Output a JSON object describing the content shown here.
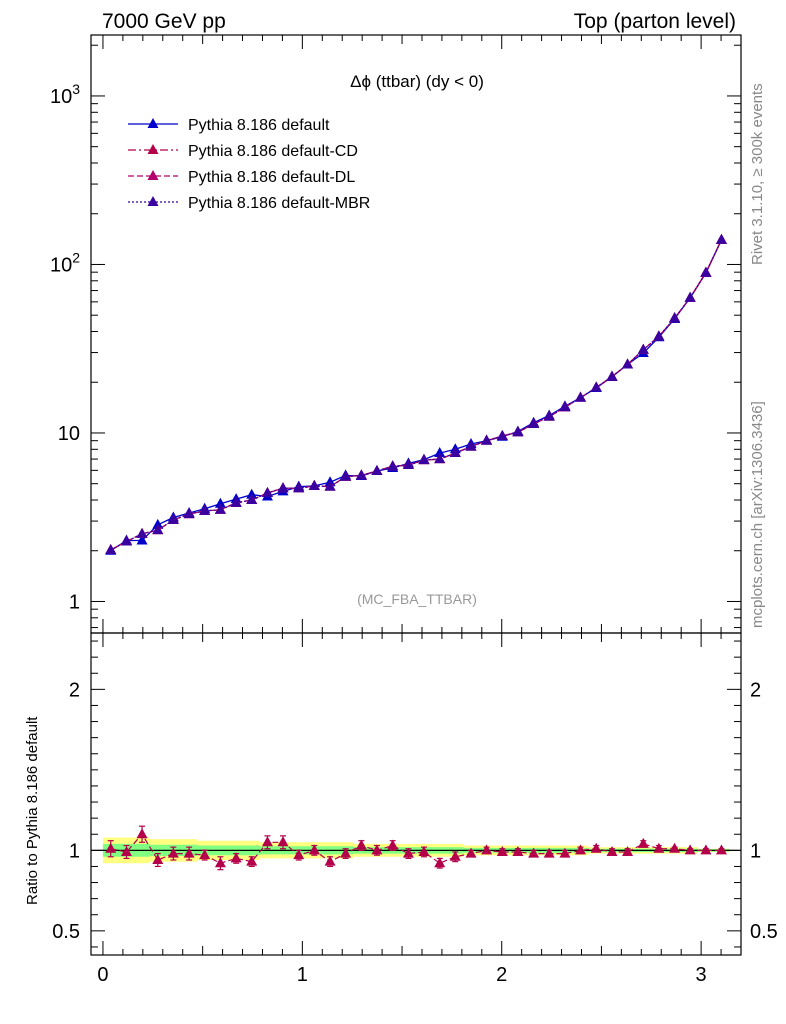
{
  "header": {
    "left": "7000 GeV pp",
    "right": "Top (parton level)"
  },
  "side": {
    "rivet": "Rivet 3.1.10, ≥ 300k events",
    "mcplots": "mcplots.cern.ch [arXiv:1306.3436]"
  },
  "main_plot": {
    "title": "Δϕ (ttbar) (dy < 0)",
    "watermark": "(MC_FBA_TTBAR)",
    "legend": [
      {
        "label": "Pythia 8.186 default",
        "color": "#0000cc",
        "dash": "solid"
      },
      {
        "label": "Pythia 8.186 default-CD",
        "color": "#b4004a",
        "dash": "dashdot"
      },
      {
        "label": "Pythia 8.186 default-DL",
        "color": "#b4006a",
        "dash": "dashed"
      },
      {
        "label": "Pythia 8.186 default-MBR",
        "color": "#3a00a0",
        "dash": "dotted"
      }
    ]
  },
  "ratio_plot": {
    "ylabel": "Ratio to Pythia 8.186 default",
    "band_inner_color": "#80ff80",
    "band_outer_color": "#ffff80"
  },
  "chart_data": [
    {
      "type": "line",
      "panel": "main",
      "yscale": "log",
      "ylim": [
        0.65,
        2300
      ],
      "xlim": [
        -0.06,
        3.2
      ],
      "x_ticks": [
        "0",
        "1",
        "2",
        "3"
      ],
      "y_ticks": [
        "1",
        "10",
        "10^2",
        "10^3"
      ],
      "x": [
        0.039,
        0.118,
        0.196,
        0.275,
        0.353,
        0.432,
        0.51,
        0.589,
        0.668,
        0.746,
        0.825,
        0.903,
        0.982,
        1.06,
        1.139,
        1.217,
        1.296,
        1.374,
        1.453,
        1.532,
        1.61,
        1.689,
        1.767,
        1.846,
        1.924,
        2.003,
        2.081,
        2.16,
        2.238,
        2.317,
        2.395,
        2.474,
        2.553,
        2.631,
        2.71,
        2.788,
        2.867,
        2.945,
        3.024,
        3.102
      ],
      "series": [
        {
          "name": "Pythia 8.186 default",
          "values": [
            2.0,
            2.3,
            2.3,
            2.85,
            3.15,
            3.35,
            3.55,
            3.8,
            4.05,
            4.3,
            4.2,
            4.5,
            4.8,
            4.85,
            5.1,
            5.6,
            5.55,
            5.95,
            6.2,
            6.6,
            6.95,
            7.6,
            8.0,
            8.6,
            9.0,
            9.5,
            10.2,
            11.5,
            12.7,
            14.4,
            16.2,
            18.5,
            21.5,
            25.5,
            29.8,
            37.0,
            47.5,
            63.5,
            89.0,
            140.0
          ]
        },
        {
          "name": "Pythia 8.186 default-CD",
          "values": [
            2.02,
            2.27,
            2.52,
            2.65,
            3.05,
            3.3,
            3.45,
            3.5,
            3.85,
            4.0,
            4.4,
            4.7,
            4.7,
            4.85,
            4.8,
            5.5,
            5.6,
            5.95,
            6.35,
            6.45,
            6.9,
            7.0,
            7.6,
            8.3,
            9.0,
            9.6,
            10.1,
            11.3,
            12.5,
            14.2,
            16.2,
            18.6,
            21.6,
            25.5,
            31.2,
            37.4,
            48.0,
            63.5,
            89.5,
            140.0
          ]
        },
        {
          "name": "Pythia 8.186 default-DL",
          "values": [
            2.02,
            2.27,
            2.52,
            2.65,
            3.05,
            3.3,
            3.45,
            3.5,
            3.85,
            4.0,
            4.4,
            4.7,
            4.7,
            4.85,
            4.8,
            5.5,
            5.6,
            5.95,
            6.35,
            6.45,
            6.9,
            7.0,
            7.6,
            8.3,
            9.0,
            9.6,
            10.1,
            11.3,
            12.5,
            14.2,
            16.2,
            18.6,
            21.6,
            25.5,
            31.2,
            37.4,
            48.0,
            63.5,
            89.5,
            140.0
          ]
        },
        {
          "name": "Pythia 8.186 default-MBR",
          "values": [
            2.02,
            2.27,
            2.52,
            2.65,
            3.05,
            3.3,
            3.45,
            3.5,
            3.85,
            4.0,
            4.4,
            4.7,
            4.7,
            4.85,
            4.8,
            5.5,
            5.6,
            5.95,
            6.35,
            6.45,
            6.9,
            7.0,
            7.6,
            8.3,
            9.0,
            9.6,
            10.1,
            11.3,
            12.5,
            14.2,
            16.2,
            18.6,
            21.6,
            25.5,
            31.2,
            37.4,
            48.0,
            63.5,
            89.5,
            140.0
          ]
        }
      ]
    },
    {
      "type": "line",
      "panel": "ratio",
      "ylabel": "Ratio to Pythia 8.186 default",
      "ylim": [
        0.35,
        2.35
      ],
      "y_ticks": [
        "0.5",
        "1",
        "2"
      ],
      "x_ticks": [
        "0",
        "1",
        "2",
        "3"
      ],
      "x": [
        0.039,
        0.118,
        0.196,
        0.275,
        0.353,
        0.432,
        0.51,
        0.589,
        0.668,
        0.746,
        0.825,
        0.903,
        0.982,
        1.06,
        1.139,
        1.217,
        1.296,
        1.374,
        1.453,
        1.532,
        1.61,
        1.689,
        1.767,
        1.846,
        1.924,
        2.003,
        2.081,
        2.16,
        2.238,
        2.317,
        2.395,
        2.474,
        2.553,
        2.631,
        2.71,
        2.788,
        2.867,
        2.945,
        3.024,
        3.102
      ],
      "ratio_values": [
        1.01,
        0.99,
        1.1,
        0.94,
        0.98,
        0.98,
        0.97,
        0.92,
        0.95,
        0.93,
        1.05,
        1.05,
        0.97,
        1.0,
        0.93,
        0.98,
        1.03,
        1.0,
        1.03,
        0.98,
        0.99,
        0.92,
        0.96,
        0.98,
        1.0,
        0.99,
        0.99,
        0.98,
        0.98,
        0.98,
        1.0,
        1.01,
        0.99,
        0.99,
        1.04,
        1.01,
        1.01,
        1.0,
        1.0,
        1.0
      ],
      "ratio_errors": [
        0.05,
        0.04,
        0.05,
        0.04,
        0.04,
        0.04,
        0.03,
        0.04,
        0.03,
        0.03,
        0.04,
        0.04,
        0.03,
        0.03,
        0.03,
        0.03,
        0.03,
        0.03,
        0.03,
        0.03,
        0.03,
        0.03,
        0.03,
        0.02,
        0.02,
        0.02,
        0.02,
        0.02,
        0.02,
        0.02,
        0.02,
        0.02,
        0.02,
        0.02,
        0.02,
        0.02,
        0.01,
        0.01,
        0.01,
        0.01
      ],
      "band_outer": [
        0.08,
        0.08,
        0.08,
        0.07,
        0.07,
        0.07,
        0.06,
        0.06,
        0.06,
        0.06,
        0.05,
        0.05,
        0.05,
        0.05,
        0.05,
        0.05,
        0.04,
        0.04,
        0.04,
        0.04,
        0.04,
        0.04,
        0.04,
        0.03,
        0.03,
        0.03,
        0.03,
        0.03,
        0.03,
        0.03,
        0.03,
        0.02,
        0.02,
        0.02,
        0.02,
        0.02,
        0.02,
        0.02,
        0.01,
        0.01
      ],
      "band_inner": [
        0.04,
        0.04,
        0.04,
        0.035,
        0.035,
        0.035,
        0.03,
        0.03,
        0.03,
        0.03,
        0.025,
        0.025,
        0.025,
        0.025,
        0.025,
        0.025,
        0.02,
        0.02,
        0.02,
        0.02,
        0.02,
        0.02,
        0.02,
        0.015,
        0.015,
        0.015,
        0.015,
        0.015,
        0.015,
        0.015,
        0.015,
        0.01,
        0.01,
        0.01,
        0.01,
        0.01,
        0.01,
        0.01,
        0.008,
        0.008
      ]
    }
  ]
}
